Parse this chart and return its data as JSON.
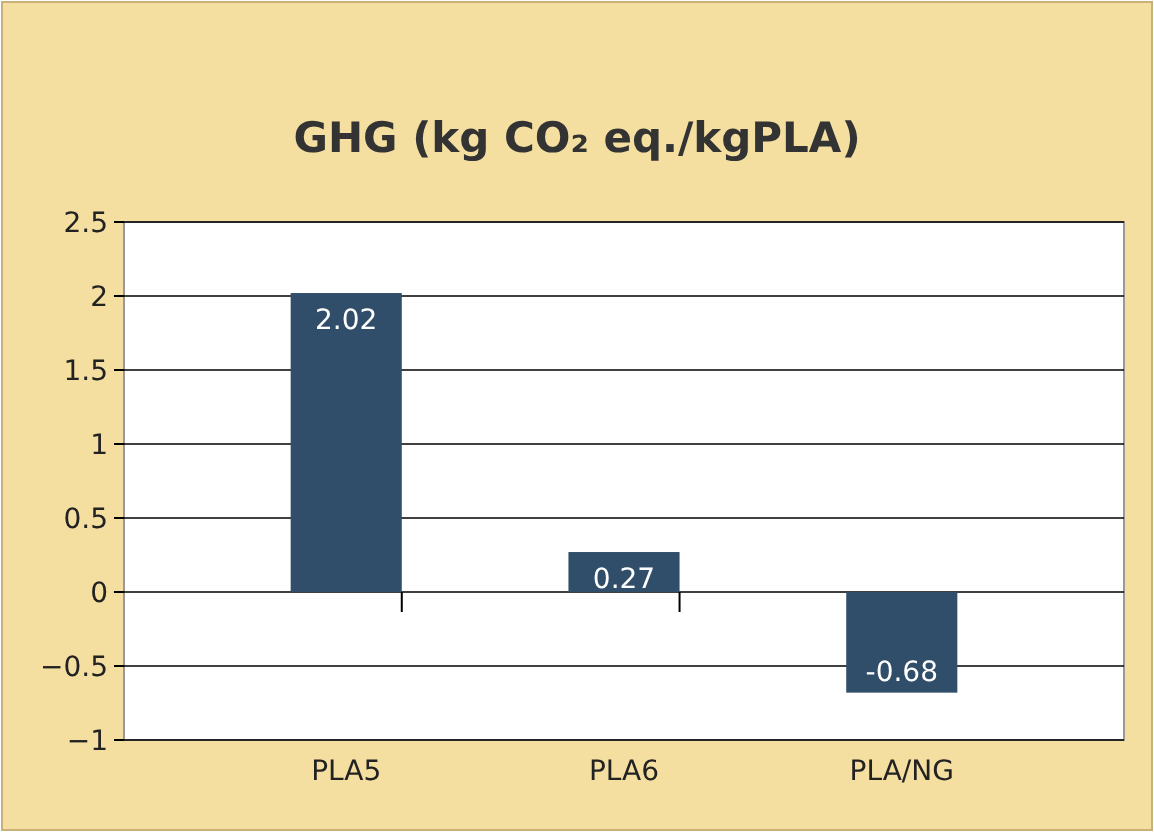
{
  "chart_data": {
    "type": "bar",
    "title": "GHG (kg CO₂ eq./kgPLA)",
    "categories": [
      "PLA5",
      "PLA6",
      "PLA/NG"
    ],
    "values": [
      2.02,
      0.27,
      -0.68
    ],
    "color": "#304d69",
    "ylim": [
      -1,
      2.5
    ],
    "yticks": [
      -1,
      -0.5,
      0,
      0.5,
      1,
      1.5,
      2,
      2.5
    ],
    "grid": "y",
    "data_labels": true
  }
}
